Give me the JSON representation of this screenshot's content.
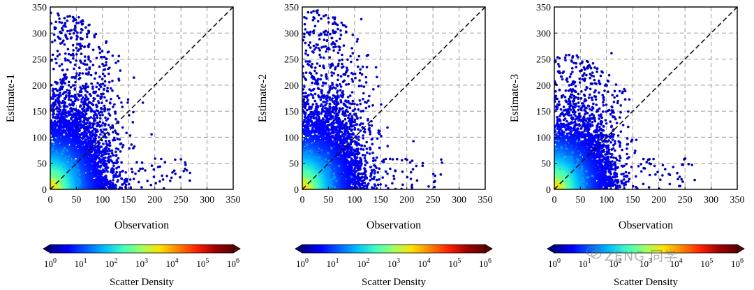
{
  "watermark": {
    "text": "ZENG 同学",
    "icon": "wechat-icon"
  },
  "colormap": [
    "#00008f",
    "#0000ff",
    "#0060ff",
    "#00c0ff",
    "#40ffbf",
    "#a0ff60",
    "#ffe000",
    "#ff8000",
    "#ff2000",
    "#a00000",
    "#600000"
  ],
  "chart_data": [
    {
      "type": "scatter",
      "panel": "Estimate-1",
      "xlabel": "Observation",
      "ylabel": "Estimate-1",
      "xlim": [
        0,
        350
      ],
      "ylim": [
        0,
        350
      ],
      "ticks": [
        "0",
        "50",
        "100",
        "150",
        "200",
        "250",
        "300",
        "350"
      ],
      "grid": true,
      "reference_line": "1:1 dashed",
      "cloud": {
        "center_x": 55,
        "spread_x": 40,
        "max_y": 340,
        "core_y": 150,
        "outliers_x": 270
      },
      "colorbar": {
        "label": "Scatter Density",
        "ticks": [
          "10^0",
          "10^1",
          "10^2",
          "10^3",
          "10^4",
          "10^5",
          "10^6"
        ],
        "scale": "log"
      }
    },
    {
      "type": "scatter",
      "panel": "Estimate-2",
      "xlabel": "Observation",
      "ylabel": "Estimate-2",
      "xlim": [
        0,
        350
      ],
      "ylim": [
        0,
        350
      ],
      "ticks": [
        "0",
        "50",
        "100",
        "150",
        "200",
        "250",
        "300",
        "350"
      ],
      "grid": true,
      "reference_line": "1:1 dashed",
      "cloud": {
        "center_x": 55,
        "spread_x": 40,
        "max_y": 345,
        "core_y": 150,
        "outliers_x": 270
      },
      "colorbar": {
        "label": "Scatter Density",
        "ticks": [
          "10^0",
          "10^1",
          "10^2",
          "10^3",
          "10^4",
          "10^5",
          "10^6"
        ],
        "scale": "log"
      }
    },
    {
      "type": "scatter",
      "panel": "Estimate-3",
      "xlabel": "Observation",
      "ylabel": "Estimate-3",
      "xlim": [
        0,
        350
      ],
      "ylim": [
        0,
        350
      ],
      "ticks": [
        "0",
        "50",
        "100",
        "150",
        "200",
        "250",
        "300",
        "350"
      ],
      "grid": true,
      "reference_line": "1:1 dashed",
      "cloud": {
        "center_x": 55,
        "spread_x": 38,
        "max_y": 260,
        "core_y": 120,
        "outliers_x": 270
      },
      "colorbar": {
        "label": "Scatter Density",
        "ticks": [
          "10^0",
          "10^1",
          "10^2",
          "10^3",
          "10^4",
          "10^5",
          "10^6"
        ],
        "scale": "log"
      }
    }
  ]
}
